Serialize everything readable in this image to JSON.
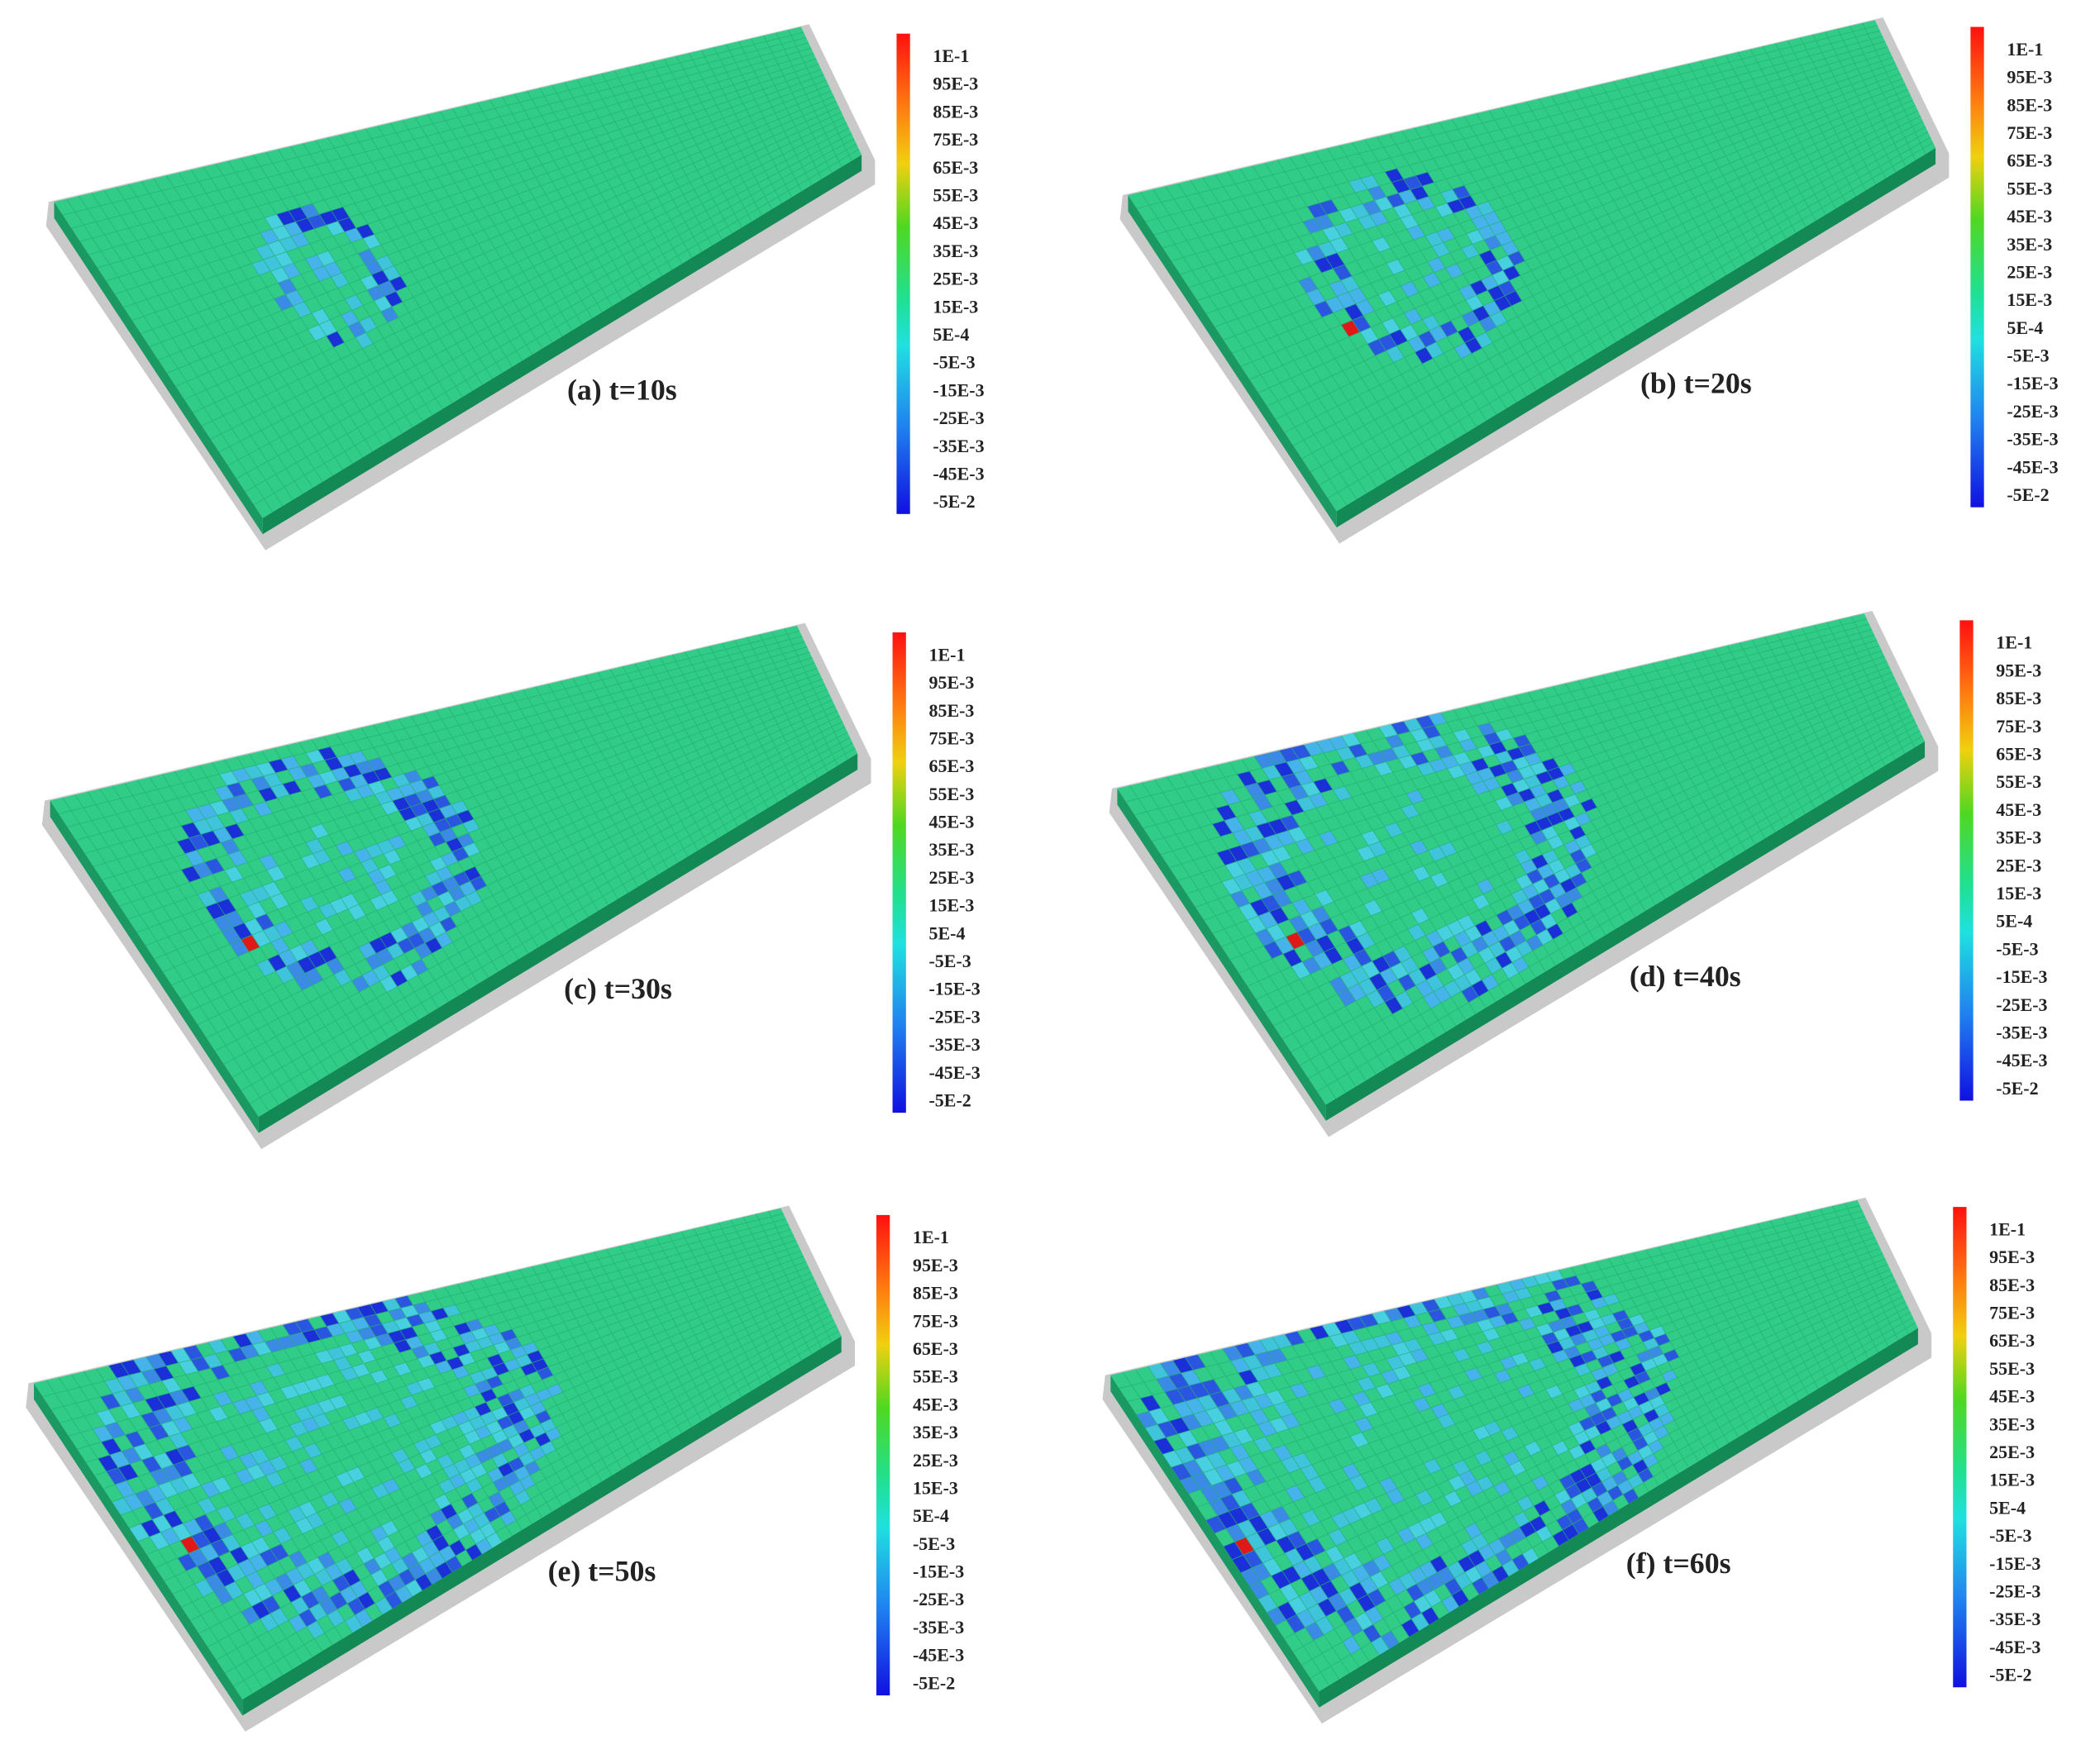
{
  "panels": [
    {
      "caption": "(a) t=10s",
      "colorbar_labels": [
        "1E-1",
        "95E-3",
        "85E-3",
        "75E-3",
        "65E-3",
        "55E-3",
        "45E-3",
        "35E-3",
        "25E-3",
        "15E-3",
        "5E-4",
        "-5E-3",
        "-15E-3",
        "-25E-3",
        "-35E-3",
        "-45E-3",
        "-5E-2"
      ]
    },
    {
      "caption": "(b) t=20s",
      "colorbar_labels": [
        "1E-1",
        "95E-3",
        "85E-3",
        "75E-3",
        "65E-3",
        "55E-3",
        "45E-3",
        "35E-3",
        "25E-3",
        "15E-3",
        "5E-4",
        "-5E-3",
        "-15E-3",
        "-25E-3",
        "-35E-3",
        "-45E-3",
        "-5E-2"
      ]
    },
    {
      "caption": "(c) t=30s",
      "colorbar_labels": [
        "1E-1",
        "95E-3",
        "85E-3",
        "75E-3",
        "65E-3",
        "55E-3",
        "45E-3",
        "35E-3",
        "25E-3",
        "15E-3",
        "5E-4",
        "-5E-3",
        "-15E-3",
        "-25E-3",
        "-35E-3",
        "-45E-3",
        "-5E-2"
      ]
    },
    {
      "caption": "(d) t=40s",
      "colorbar_labels": [
        "1E-1",
        "95E-3",
        "85E-3",
        "75E-3",
        "65E-3",
        "55E-3",
        "45E-3",
        "35E-3",
        "25E-3",
        "15E-3",
        "5E-4",
        "-5E-3",
        "-15E-3",
        "-25E-3",
        "-35E-3",
        "-45E-3",
        "-5E-2"
      ]
    },
    {
      "caption": "(e) t=50s",
      "colorbar_labels": [
        "1E-1",
        "95E-3",
        "85E-3",
        "75E-3",
        "65E-3",
        "55E-3",
        "45E-3",
        "35E-3",
        "25E-3",
        "15E-3",
        "5E-4",
        "-5E-3",
        "-15E-3",
        "-25E-3",
        "-35E-3",
        "-45E-3",
        "-5E-2"
      ]
    },
    {
      "caption": "(f) t=60s",
      "colorbar_labels": [
        "1E-1",
        "95E-3",
        "85E-3",
        "75E-3",
        "65E-3",
        "55E-3",
        "45E-3",
        "35E-3",
        "25E-3",
        "15E-3",
        "5E-4",
        "-5E-3",
        "-15E-3",
        "-25E-3",
        "-35E-3",
        "-45E-3",
        "-5E-2"
      ]
    }
  ]
}
